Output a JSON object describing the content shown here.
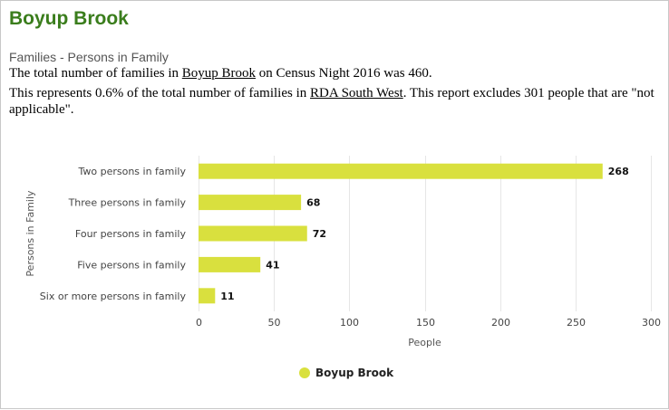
{
  "page": {
    "title": "Boyup Brook",
    "subtitle": "Families - Persons in Family",
    "para1_prefix": "The total number of families in ",
    "para1_link": "Boyup Brook",
    "para1_suffix": " on Census Night 2016 was 460.",
    "para2_prefix": "This represents 0.6% of the total number of families in ",
    "para2_link": "RDA South West",
    "para2_suffix": ". This report excludes 301 people that are \"not applicable\"."
  },
  "colors": {
    "bar": "#d9e03e",
    "title": "#3a7d1c",
    "grid": "#e6e6e6"
  },
  "chart_data": {
    "type": "bar",
    "orientation": "horizontal",
    "categories": [
      "Two persons in family",
      "Three persons in family",
      "Four persons in family",
      "Five persons in family",
      "Six or more persons in family"
    ],
    "series": [
      {
        "name": "Boyup Brook",
        "values": [
          268,
          68,
          72,
          41,
          11
        ]
      }
    ],
    "data_labels": [
      "268",
      "68",
      "72",
      "41",
      "11"
    ],
    "xlabel": "People",
    "ylabel": "Persons in Family",
    "xlim": [
      0,
      300
    ],
    "xticks": [
      0,
      50,
      100,
      150,
      200,
      250,
      300
    ],
    "xtick_labels": [
      "0",
      "50",
      "100",
      "150",
      "200",
      "250",
      "300"
    ],
    "grid": true,
    "legend": "bottom-center"
  }
}
